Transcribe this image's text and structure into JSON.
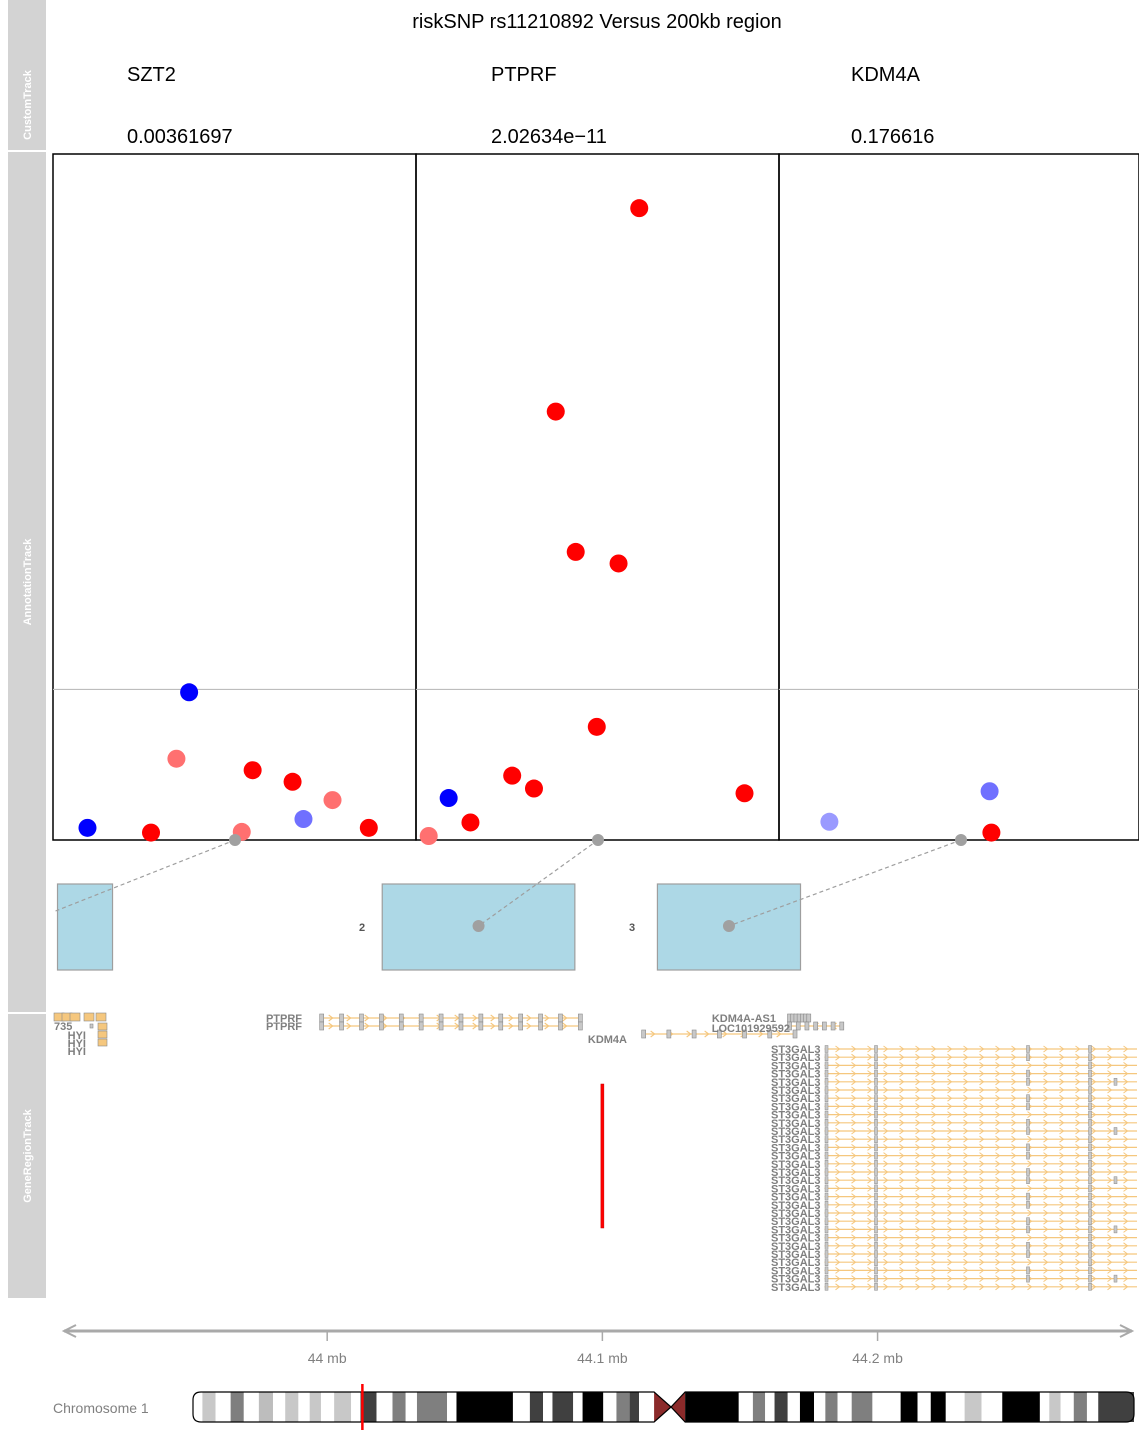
{
  "chart_data": {
    "type": "scatter",
    "title": "riskSNP rs11210892 Versus 200kb region",
    "track_labels": {
      "custom": "CustomTrack",
      "annotation": "AnnotationTrack",
      "gene_region": "GeneRegionTrack"
    },
    "panels": [
      {
        "gene": "SZT2",
        "value": "0.00361697",
        "points": [
          {
            "x": 0.095,
            "y": 0.012,
            "color": "#0000ff"
          },
          {
            "x": 0.27,
            "y": 0.005,
            "color": "#ff0000"
          },
          {
            "x": 0.52,
            "y": 0.006,
            "color": "#ff7070"
          },
          {
            "x": 0.87,
            "y": 0.012,
            "color": "#ff0000"
          },
          {
            "x": 0.34,
            "y": 0.114,
            "color": "#ff7070"
          },
          {
            "x": 0.55,
            "y": 0.097,
            "color": "#ff0000"
          },
          {
            "x": 0.66,
            "y": 0.08,
            "color": "#ff0000"
          },
          {
            "x": 0.77,
            "y": 0.053,
            "color": "#ff7070"
          },
          {
            "x": 0.69,
            "y": 0.025,
            "color": "#7070ff"
          },
          {
            "x": 0.375,
            "y": 0.212,
            "color": "#0000ff"
          }
        ],
        "connector": {
          "from": 0.5,
          "to_box": 1
        }
      },
      {
        "gene": "PTPRF",
        "value": "2.02634e−11",
        "points": [
          {
            "x": 0.615,
            "y": 0.926,
            "color": "#ff0000"
          },
          {
            "x": 0.385,
            "y": 0.626,
            "color": "#ff0000"
          },
          {
            "x": 0.44,
            "y": 0.419,
            "color": "#ff0000"
          },
          {
            "x": 0.558,
            "y": 0.402,
            "color": "#ff0000"
          },
          {
            "x": 0.498,
            "y": 0.161,
            "color": "#ff0000"
          },
          {
            "x": 0.265,
            "y": 0.089,
            "color": "#ff0000"
          },
          {
            "x": 0.325,
            "y": 0.07,
            "color": "#ff0000"
          },
          {
            "x": 0.09,
            "y": 0.056,
            "color": "#0000ff"
          },
          {
            "x": 0.15,
            "y": 0.02,
            "color": "#ff0000"
          },
          {
            "x": 0.035,
            "y": 0.0,
            "color": "#ff7070"
          },
          {
            "x": 0.905,
            "y": 0.063,
            "color": "#ff0000"
          }
        ],
        "connector": {
          "from": 0.5,
          "to_box": 2
        }
      },
      {
        "gene": "KDM4A",
        "value": "0.176616",
        "points": [
          {
            "x": 0.14,
            "y": 0.021,
            "color": "#9a9aff"
          },
          {
            "x": 0.59,
            "y": 0.005,
            "color": "#ff0000"
          },
          {
            "x": 0.585,
            "y": 0.066,
            "color": "#7070ff"
          }
        ],
        "connector": {
          "from": 0.5,
          "to_box": 3
        }
      }
    ],
    "threshold_fraction": 0.218,
    "boxes": [
      {
        "label": "",
        "start": 43.902,
        "end": 43.922
      },
      {
        "label": "2",
        "start": 44.02,
        "end": 44.09
      },
      {
        "label": "3",
        "start": 44.12,
        "end": 44.172
      }
    ],
    "genes": [
      {
        "label": "735",
        "row": 0,
        "start": 43.901,
        "end": 43.922,
        "strand": "+"
      },
      {
        "label": "HYI",
        "row": 1,
        "start": 43.918,
        "end": 43.921,
        "strand": "+"
      },
      {
        "label": "HYI",
        "row": 2,
        "start": 43.918,
        "end": 43.921,
        "strand": "+"
      },
      {
        "label": "HYI",
        "row": 3,
        "start": 43.918,
        "end": 43.921,
        "strand": "+"
      },
      {
        "label": "PTPRF",
        "row": 0,
        "start": 43.998,
        "end": 44.092,
        "strand": "+"
      },
      {
        "label": "PTPRF",
        "row": 1,
        "start": 43.998,
        "end": 44.092,
        "strand": "+"
      },
      {
        "label": "KDM4A-AS1",
        "row": 0,
        "start": 44.168,
        "end": 44.175,
        "strand": "-"
      },
      {
        "label": "LOC101929592",
        "row": 1,
        "start": 44.168,
        "end": 44.187,
        "strand": "-"
      },
      {
        "label": "KDM4A",
        "row": 2,
        "start": 44.115,
        "end": 44.17,
        "strand": "+"
      }
    ],
    "st3gal3": {
      "label": "ST3GAL3",
      "count": 30,
      "start": 44.172,
      "end": 44.295
    },
    "snp_position": 44.1,
    "xaxis": {
      "range": [
        43.9,
        44.295
      ],
      "ticks": [
        {
          "value": 44.0,
          "label": "44 mb"
        },
        {
          "value": 44.1,
          "label": "44.1 mb"
        },
        {
          "value": 44.2,
          "label": "44.2 mb"
        }
      ]
    },
    "chromosome": {
      "label": "Chromosome 1",
      "marker_fraction": 0.18
    }
  }
}
